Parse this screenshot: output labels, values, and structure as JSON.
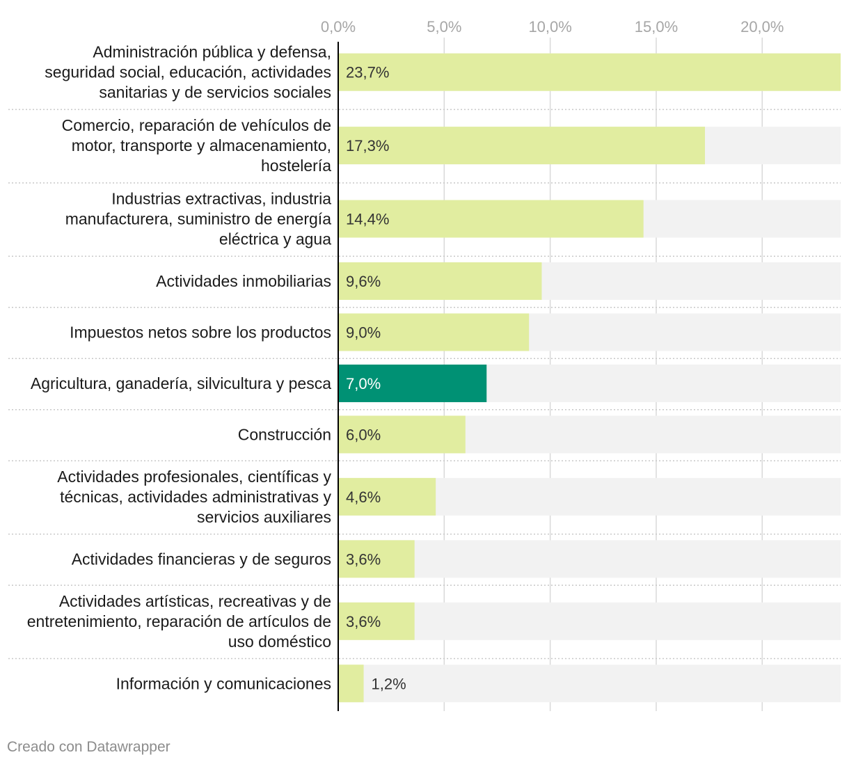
{
  "chart_data": {
    "type": "bar",
    "orientation": "horizontal",
    "title": "",
    "xlabel": "",
    "ylabel": "",
    "xlim": [
      0,
      23.7
    ],
    "ticks": [
      {
        "value": 0,
        "label": "0,0%"
      },
      {
        "value": 5,
        "label": "5,0%"
      },
      {
        "value": 10,
        "label": "10,0%"
      },
      {
        "value": 15,
        "label": "15,0%"
      },
      {
        "value": 20,
        "label": "20,0%"
      }
    ],
    "categories": [
      {
        "lines": [
          "Administración pública y defensa,",
          "seguridad social, educación, actividades",
          "sanitarias y de servicios sociales"
        ],
        "value": 23.7,
        "label": "23,7%"
      },
      {
        "lines": [
          "Comercio, reparación de vehículos de",
          "motor, transporte y almacenamiento,",
          "hostelería"
        ],
        "value": 17.3,
        "label": "17,3%"
      },
      {
        "lines": [
          "Industrias extractivas, industria",
          "manufacturera, suministro de energía",
          "eléctrica y agua"
        ],
        "value": 14.4,
        "label": "14,4%"
      },
      {
        "lines": [
          "Actividades inmobiliarias"
        ],
        "value": 9.6,
        "label": "9,6%"
      },
      {
        "lines": [
          "Impuestos netos sobre los productos"
        ],
        "value": 9.0,
        "label": "9,0%"
      },
      {
        "lines": [
          "Agricultura, ganadería, silvicultura y pesca"
        ],
        "value": 7.0,
        "label": "7,0%",
        "highlight": true
      },
      {
        "lines": [
          "Construcción"
        ],
        "value": 6.0,
        "label": "6,0%"
      },
      {
        "lines": [
          "Actividades profesionales, científicas y",
          "técnicas, actividades administrativas y",
          "servicios auxiliares"
        ],
        "value": 4.6,
        "label": "4,6%"
      },
      {
        "lines": [
          "Actividades financieras y de seguros"
        ],
        "value": 3.6,
        "label": "3,6%"
      },
      {
        "lines": [
          "Actividades artísticas, recreativas y de",
          "entretenimiento, reparación de artículos de",
          "uso doméstico"
        ],
        "value": 3.6,
        "label": "3,6%"
      },
      {
        "lines": [
          "Información y comunicaciones"
        ],
        "value": 1.2,
        "label": "1,2%"
      }
    ],
    "colors": {
      "bar": "#e1eda0",
      "highlight": "#009174",
      "track": "#f2f2f2",
      "grid": "#d9d9d9",
      "tick_text": "#a6a6a6",
      "label_text": "#1a1a1a",
      "value_text": "#333333",
      "value_text_highlight": "#ffffff",
      "separator": "#c8c8c8",
      "axis": "#000000"
    }
  },
  "footer": {
    "credit": "Creado con Datawrapper"
  }
}
